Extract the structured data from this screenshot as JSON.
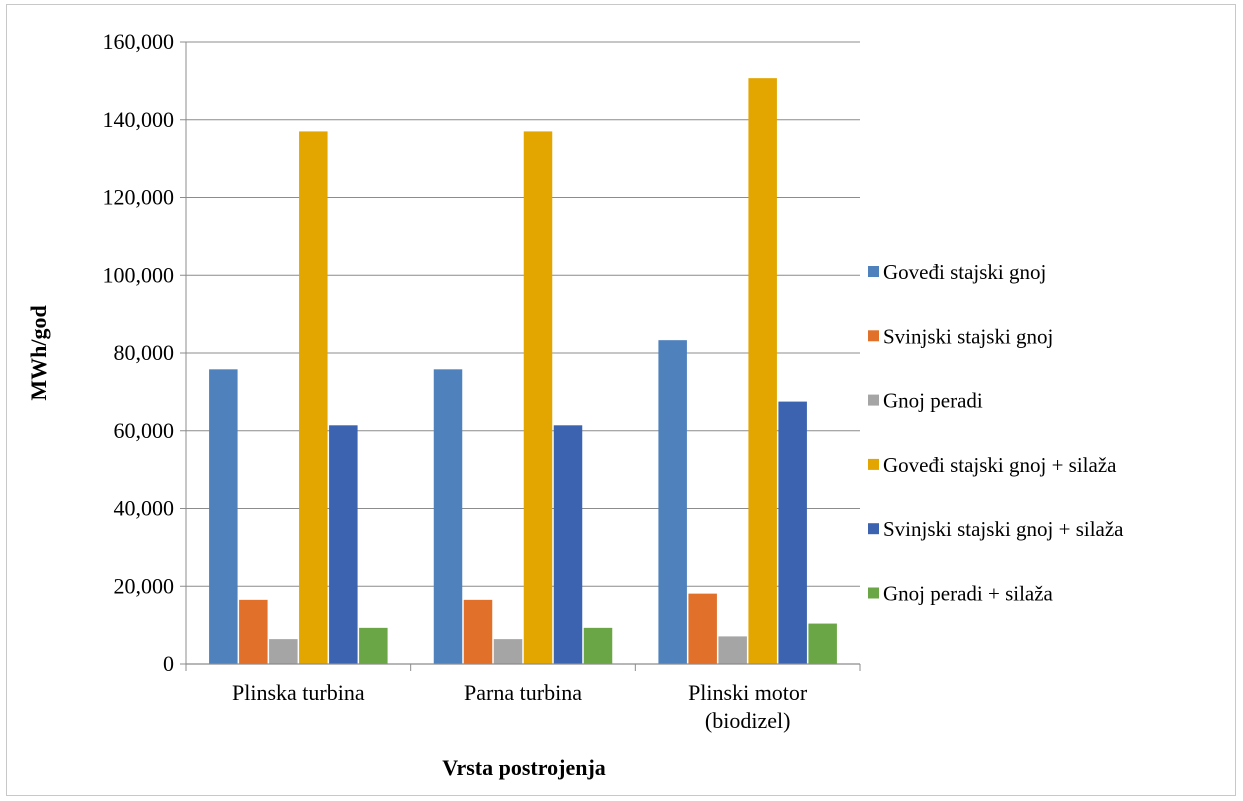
{
  "chart_data": {
    "type": "bar",
    "title": "",
    "xlabel": "Vrsta postrojenja",
    "ylabel": "MWh/god",
    "ylim": [
      0,
      160000
    ],
    "yticks": [
      "0",
      "20,000",
      "40,000",
      "60,000",
      "80,000",
      "100,000",
      "120,000",
      "140,000",
      "160,000"
    ],
    "categories": [
      [
        "Plinska turbina"
      ],
      [
        "Parna turbina"
      ],
      [
        "Plinski motor",
        "(biodizel)"
      ]
    ],
    "grid": true,
    "legend_position": "right",
    "series": [
      {
        "name": "Goveđi stajski gnoj",
        "color": "#4f81bd",
        "values": [
          75800,
          75800,
          83300
        ]
      },
      {
        "name": "Svinjski stajski gnoj",
        "color": "#e0702a",
        "values": [
          16500,
          16500,
          18100
        ]
      },
      {
        "name": "Gnoj peradi",
        "color": "#a5a5a5",
        "values": [
          6400,
          6400,
          7100
        ]
      },
      {
        "name": "Goveđi stajski gnoj + silaža",
        "color": "#e3a600",
        "values": [
          137000,
          137000,
          150700
        ]
      },
      {
        "name": "Svinjski stajski gnoj + silaža",
        "color": "#3c63b0",
        "values": [
          61400,
          61400,
          67500
        ]
      },
      {
        "name": "Gnoj peradi + silaža",
        "color": "#6aa646",
        "values": [
          9300,
          9300,
          10400
        ]
      }
    ]
  }
}
